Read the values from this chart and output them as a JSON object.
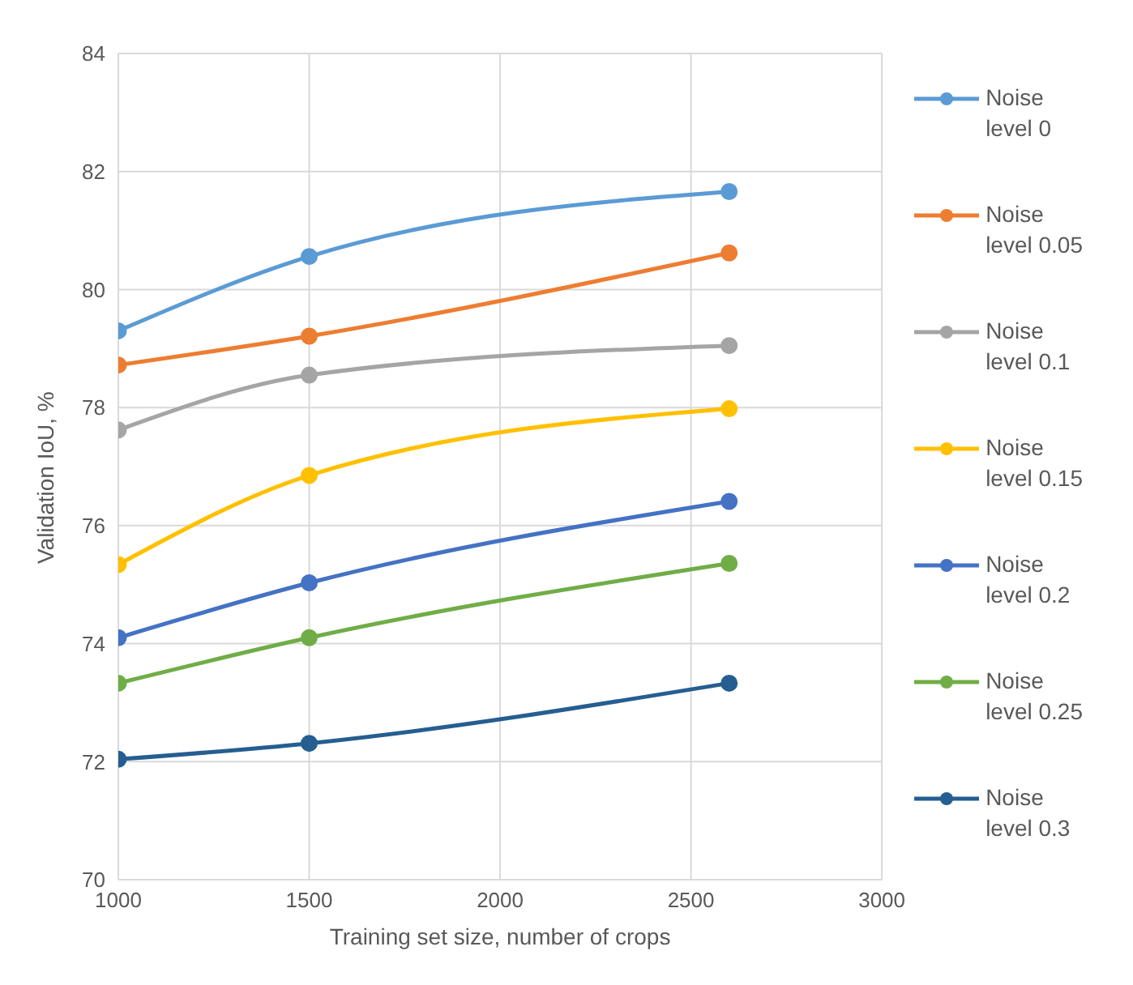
{
  "chart_data": {
    "type": "line",
    "xlabel": "Training set size, number of crops",
    "ylabel": "Validation IoU, %",
    "x": [
      1000,
      1500,
      2600
    ],
    "series": [
      {
        "name": "Noise level 0",
        "color": "#5b9bd5",
        "values": [
          79.3,
          80.56,
          81.66
        ]
      },
      {
        "name": "Noise level 0.05",
        "color": "#ed7d31",
        "values": [
          78.72,
          79.21,
          80.62
        ]
      },
      {
        "name": "Noise level 0.1",
        "color": "#a5a5a5",
        "values": [
          77.62,
          78.55,
          79.05
        ]
      },
      {
        "name": "Noise level 0.15",
        "color": "#ffc000",
        "values": [
          75.34,
          76.85,
          77.98
        ]
      },
      {
        "name": "Noise level 0.2",
        "color": "#4472c4",
        "values": [
          74.1,
          75.03,
          76.41
        ]
      },
      {
        "name": "Noise level 0.25",
        "color": "#70ad47",
        "values": [
          73.33,
          74.1,
          75.36
        ]
      },
      {
        "name": "Noise level 0.3",
        "color": "#255e91",
        "values": [
          72.04,
          72.31,
          73.33
        ]
      }
    ],
    "xlim": [
      1000,
      3000
    ],
    "xticks": [
      1000,
      1500,
      2000,
      2500,
      3000
    ],
    "ylim": [
      70,
      84
    ],
    "yticks": [
      70,
      72,
      74,
      76,
      78,
      80,
      82,
      84
    ],
    "grid": true,
    "legend": "right",
    "marker": "circle",
    "line_style": "solid"
  }
}
